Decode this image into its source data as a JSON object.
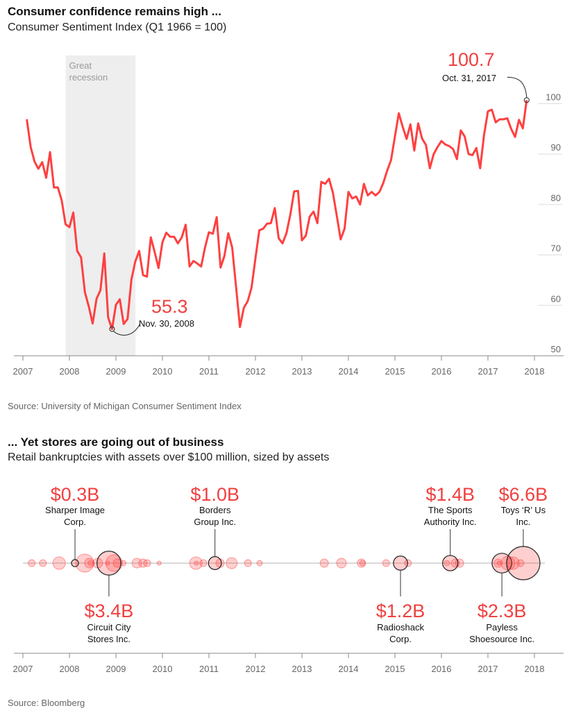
{
  "chart_data": [
    {
      "type": "line",
      "title": "Consumer confidence remains high ...",
      "subtitle": "Consumer Sentiment Index (Q1 1966 = 100)",
      "source": "Source: University of Michigan Consumer Sentiment Index",
      "x_start": "2007-01",
      "x_frequency": "monthly",
      "xlim": [
        2007,
        2018
      ],
      "ylim": [
        50,
        100
      ],
      "x_ticks": [
        "2007",
        "2008",
        "2009",
        "2010",
        "2011",
        "2012",
        "2013",
        "2014",
        "2015",
        "2016",
        "2017",
        "2018"
      ],
      "y_ticks": [
        "50",
        "60",
        "70",
        "80",
        "90",
        "100"
      ],
      "series_color": "#ff4040",
      "values": [
        96.9,
        91.4,
        88.5,
        87.1,
        88.4,
        85.3,
        90.4,
        83.4,
        83.4,
        80.9,
        76.1,
        75.5,
        78.4,
        70.8,
        69.5,
        62.6,
        59.8,
        56.4,
        61.3,
        63.0,
        70.3,
        57.6,
        55.3,
        60.1,
        61.2,
        56.3,
        57.3,
        65.1,
        68.7,
        70.8,
        66.0,
        65.7,
        73.5,
        70.6,
        67.4,
        72.5,
        74.4,
        73.6,
        73.6,
        72.3,
        73.5,
        76.0,
        67.7,
        68.8,
        68.3,
        67.7,
        71.5,
        74.5,
        74.2,
        77.5,
        67.5,
        69.8,
        74.3,
        71.5,
        63.7,
        55.7,
        59.5,
        60.8,
        63.5,
        69.3,
        74.9,
        75.2,
        76.2,
        76.3,
        79.3,
        73.3,
        72.3,
        74.3,
        78.0,
        82.6,
        82.7,
        72.9,
        73.8,
        77.6,
        78.6,
        76.3,
        84.5,
        84.1,
        85.1,
        82.3,
        77.7,
        73.1,
        75.2,
        82.5,
        81.2,
        81.6,
        80.0,
        84.1,
        81.8,
        82.5,
        81.8,
        82.5,
        84.3,
        86.7,
        88.8,
        93.5,
        98.1,
        95.4,
        93.0,
        95.9,
        90.7,
        96.1,
        93.1,
        91.8,
        87.2,
        90.0,
        91.4,
        92.6,
        91.9,
        91.6,
        91.0,
        89.0,
        94.7,
        93.5,
        90.0,
        89.8,
        91.2,
        87.2,
        93.8,
        98.5,
        98.8,
        96.3,
        96.9,
        96.9,
        97.1,
        95.0,
        93.4,
        96.8,
        95.1,
        100.7
      ],
      "shaded_region": {
        "label_line1": "Great",
        "label_line2": "recession",
        "from": 2007.92,
        "to": 2009.42,
        "color": "#eeeeee"
      },
      "annotations": [
        {
          "value_label": "55.3",
          "date_label": "Nov. 30, 2008",
          "month_index": 22
        },
        {
          "value_label": "100.7",
          "date_label": "Oct. 31, 2017",
          "month_index": 129
        }
      ]
    },
    {
      "type": "scatter",
      "title": "... Yet stores are going out of business",
      "subtitle": "Retail bankruptcies with assets over $100 million, sized by assets",
      "source": "Source: Bloomberg",
      "xlim": [
        2007,
        2018
      ],
      "x_ticks": [
        "2007",
        "2008",
        "2009",
        "2010",
        "2011",
        "2012",
        "2013",
        "2014",
        "2015",
        "2016",
        "2017",
        "2018"
      ],
      "size_unit": "$B assets",
      "bubble_color": "#ff4040",
      "points": [
        {
          "x": 2007.19,
          "assets": 0.29
        },
        {
          "x": 2007.43,
          "assets": 0.29
        },
        {
          "x": 2007.78,
          "assets": 0.93
        },
        {
          "x": 2008.33,
          "assets": 1.94
        },
        {
          "x": 2008.43,
          "assets": 0.56
        },
        {
          "x": 2008.46,
          "assets": 0.18
        },
        {
          "x": 2008.61,
          "assets": 0.56
        },
        {
          "x": 2008.82,
          "assets": 0.1
        },
        {
          "x": 2008.96,
          "assets": 1.65
        },
        {
          "x": 2009.03,
          "assets": 0.41
        },
        {
          "x": 2009.16,
          "assets": 0.18
        },
        {
          "x": 2009.45,
          "assets": 0.56
        },
        {
          "x": 2009.58,
          "assets": 0.41
        },
        {
          "x": 2009.67,
          "assets": 0.29
        },
        {
          "x": 2009.93,
          "assets": 0.1
        },
        {
          "x": 2010.72,
          "assets": 0.93
        },
        {
          "x": 2010.73,
          "assets": 0.1
        },
        {
          "x": 2010.88,
          "assets": 0.29
        },
        {
          "x": 2011.24,
          "assets": 0.41
        },
        {
          "x": 2011.49,
          "assets": 0.73
        },
        {
          "x": 2011.84,
          "assets": 0.29
        },
        {
          "x": 2012.09,
          "assets": 0.18
        },
        {
          "x": 2013.48,
          "assets": 0.41
        },
        {
          "x": 2013.85,
          "assets": 0.56
        },
        {
          "x": 2014.28,
          "assets": 0.41
        },
        {
          "x": 2014.3,
          "assets": 0.18
        },
        {
          "x": 2014.81,
          "assets": 0.29
        },
        {
          "x": 2015.28,
          "assets": 0.29
        },
        {
          "x": 2016.12,
          "assets": 0.18
        },
        {
          "x": 2016.3,
          "assets": 0.41
        },
        {
          "x": 2016.39,
          "assets": 0.41
        },
        {
          "x": 2017.22,
          "assets": 0.41
        },
        {
          "x": 2017.24,
          "assets": 0.1
        },
        {
          "x": 2017.43,
          "assets": 1.15
        },
        {
          "x": 2017.54,
          "assets": 0.93
        },
        {
          "x": 2017.7,
          "assets": 0.29
        }
      ],
      "highlighted": [
        {
          "x": 2008.12,
          "assets": 0.3,
          "value_label": "$0.3B",
          "name_line1": "Sharper Image",
          "name_line2": "Corp.",
          "position": "above"
        },
        {
          "x": 2008.85,
          "assets": 3.4,
          "value_label": "$3.4B",
          "name_line1": "Circuit City",
          "name_line2": "Stores Inc.",
          "position": "below"
        },
        {
          "x": 2011.13,
          "assets": 1.0,
          "value_label": "$1.0B",
          "name_line1": "Borders",
          "name_line2": "Group Inc.",
          "position": "above"
        },
        {
          "x": 2015.12,
          "assets": 1.2,
          "value_label": "$1.2B",
          "name_line1": "Radioshack",
          "name_line2": "Corp.",
          "position": "below"
        },
        {
          "x": 2016.19,
          "assets": 1.4,
          "value_label": "$1.4B",
          "name_line1": "The Sports",
          "name_line2": "Authority Inc.",
          "position": "above"
        },
        {
          "x": 2017.3,
          "assets": 2.3,
          "value_label": "$2.3B",
          "name_line1": "Payless",
          "name_line2": "Shoesource Inc.",
          "position": "below"
        },
        {
          "x": 2017.76,
          "assets": 6.6,
          "value_label": "$6.6B",
          "name_line1": "Toys ‘R’ Us",
          "name_line2": "Inc.",
          "position": "above"
        }
      ]
    }
  ]
}
